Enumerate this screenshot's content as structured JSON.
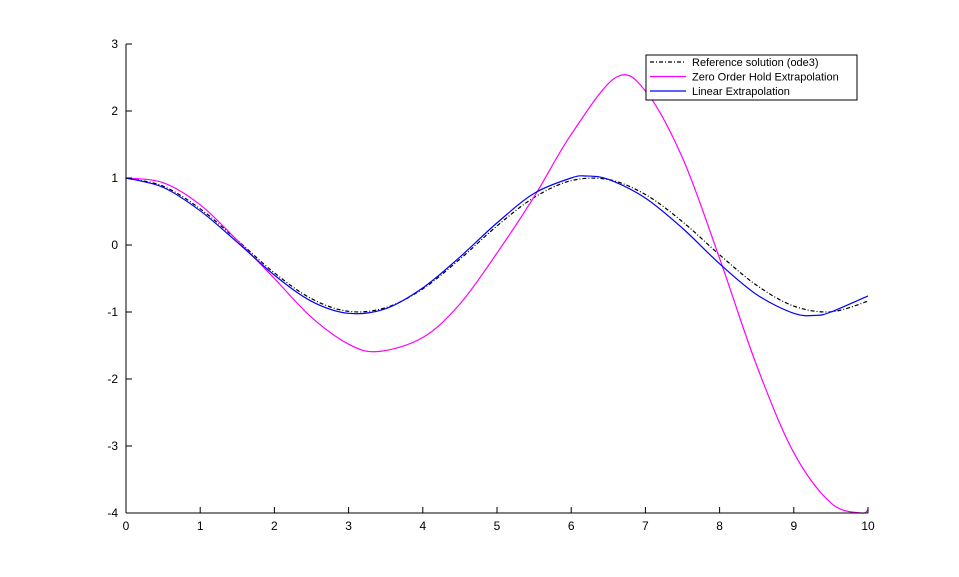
{
  "chart_data": {
    "type": "line",
    "title": "",
    "xlabel": "",
    "ylabel": "",
    "xlim": [
      0,
      10
    ],
    "ylim": [
      -4,
      3
    ],
    "xticks": [
      0,
      1,
      2,
      3,
      4,
      5,
      6,
      7,
      8,
      9,
      10
    ],
    "yticks": [
      -4,
      -3,
      -2,
      -1,
      0,
      1,
      2,
      3
    ],
    "xtick_labels": [
      "0",
      "1",
      "2",
      "3",
      "4",
      "5",
      "6",
      "7",
      "8",
      "9",
      "10"
    ],
    "ytick_labels": [
      "-4",
      "-3",
      "-2",
      "-1",
      "0",
      "1",
      "2",
      "3"
    ],
    "grid": false,
    "legend_position": "top-right",
    "series": [
      {
        "name": "Reference solution (ode3)",
        "color": "#000000",
        "style": "dash-dot",
        "x": [
          0,
          0.5,
          1,
          1.5,
          2,
          2.5,
          3,
          3.5,
          4,
          4.5,
          5,
          5.5,
          6,
          6.5,
          7,
          7.5,
          8,
          8.5,
          9,
          9.5,
          10
        ],
        "y": [
          1.0,
          0.878,
          0.54,
          0.071,
          -0.416,
          -0.801,
          -0.99,
          -0.936,
          -0.654,
          -0.211,
          0.284,
          0.709,
          0.96,
          0.977,
          0.754,
          0.347,
          -0.146,
          -0.602,
          -0.911,
          -0.997,
          -0.839
        ]
      },
      {
        "name": "Zero Order Hold Extrapolation",
        "color": "#ff00ff",
        "style": "solid",
        "x": [
          0,
          0.5,
          1,
          1.5,
          2,
          2.5,
          3,
          3.4,
          4,
          4.5,
          5,
          5.5,
          6,
          6.6,
          7,
          7.5,
          8,
          8.5,
          9,
          9.5,
          9.9,
          10
        ],
        "y": [
          1.0,
          0.93,
          0.6,
          0.07,
          -0.5,
          -1.08,
          -1.48,
          -1.59,
          -1.38,
          -0.88,
          -0.12,
          0.72,
          1.65,
          2.5,
          2.3,
          1.3,
          -0.2,
          -1.8,
          -3.1,
          -3.85,
          -4.0,
          -3.95
        ]
      },
      {
        "name": "Linear Extrapolation",
        "color": "#0000ff",
        "style": "solid",
        "x": [
          0,
          0.5,
          1,
          1.5,
          2,
          2.5,
          3,
          3.5,
          4,
          4.5,
          5,
          5.5,
          6,
          6.2,
          6.5,
          7,
          7.5,
          8,
          8.5,
          9,
          9.3,
          9.5,
          10
        ],
        "y": [
          1.0,
          0.86,
          0.51,
          0.04,
          -0.45,
          -0.84,
          -1.02,
          -0.95,
          -0.64,
          -0.18,
          0.33,
          0.77,
          1.0,
          1.03,
          0.98,
          0.7,
          0.25,
          -0.28,
          -0.74,
          -1.02,
          -1.05,
          -1.0,
          -0.76
        ]
      }
    ]
  }
}
